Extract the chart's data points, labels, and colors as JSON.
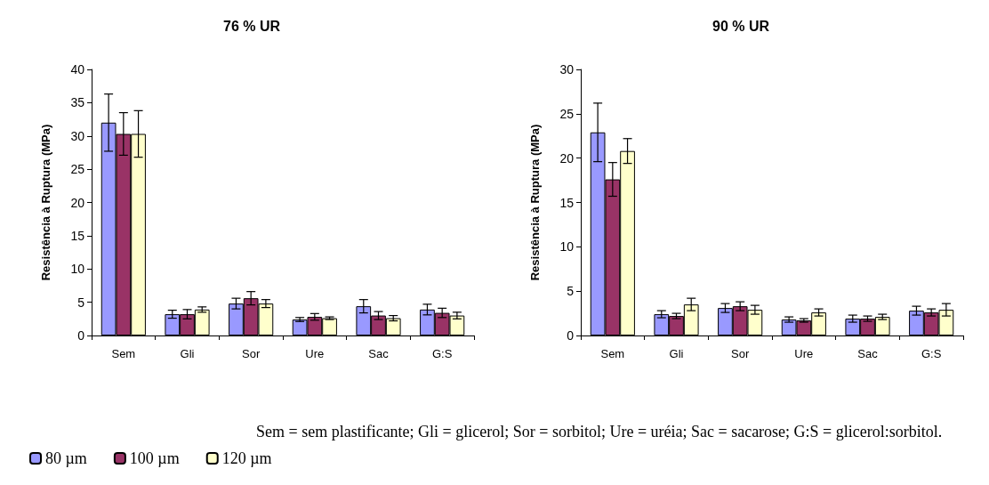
{
  "chart_data": [
    {
      "type": "bar",
      "title": "76 % UR",
      "ylabel": "Resistência à Ruptura (MPa)",
      "categories": [
        "Sem",
        "Gli",
        "Sor",
        "Ure",
        "Sac",
        "G:S"
      ],
      "ylim": [
        0,
        40
      ],
      "yticks": [
        0,
        5,
        10,
        15,
        20,
        25,
        30,
        35,
        40
      ],
      "grid": false,
      "legend": "bottom",
      "series": [
        {
          "name": "80 µm",
          "color": "#9999ff",
          "values": [
            32,
            3.2,
            4.8,
            2.4,
            4.4,
            3.9
          ],
          "errors": [
            4.3,
            0.6,
            0.8,
            0.3,
            1.0,
            0.8
          ]
        },
        {
          "name": "100 µm",
          "color": "#993366",
          "values": [
            30.3,
            3.2,
            5.6,
            2.8,
            3.0,
            3.4
          ],
          "errors": [
            3.2,
            0.7,
            1.0,
            0.5,
            0.6,
            0.7
          ]
        },
        {
          "name": "120 µm",
          "color": "#ffffcc",
          "values": [
            30.3,
            3.9,
            4.8,
            2.6,
            2.6,
            3.0
          ],
          "errors": [
            3.5,
            0.4,
            0.6,
            0.2,
            0.4,
            0.5
          ]
        }
      ],
      "annotations": [
        "Sem = sem plastificante; Gli = glicerol; Sor = sorbitol; Ure = uréia; Sac = sacarose; G:S = glicerol:sorbitol."
      ]
    },
    {
      "type": "bar",
      "title": "90 % UR",
      "ylabel": "Resistência à Ruptura (MPa)",
      "categories": [
        "Sem",
        "Gli",
        "Sor",
        "Ure",
        "Sac",
        "G:S"
      ],
      "ylim": [
        0,
        30
      ],
      "yticks": [
        0,
        5,
        10,
        15,
        20,
        25,
        30
      ],
      "grid": false,
      "series": [
        {
          "color": "#9999ff",
          "values": [
            22.9,
            2.4,
            3.1,
            1.8,
            1.9,
            2.8
          ],
          "errors": [
            3.3,
            0.4,
            0.5,
            0.3,
            0.4,
            0.5
          ]
        },
        {
          "color": "#993366",
          "values": [
            17.6,
            2.2,
            3.3,
            1.7,
            1.9,
            2.6
          ],
          "errors": [
            1.9,
            0.3,
            0.5,
            0.2,
            0.3,
            0.4
          ]
        },
        {
          "color": "#ffffcc",
          "values": [
            20.8,
            3.5,
            2.9,
            2.6,
            2.1,
            2.9
          ],
          "errors": [
            1.4,
            0.7,
            0.5,
            0.4,
            0.3,
            0.7
          ]
        }
      ]
    }
  ]
}
